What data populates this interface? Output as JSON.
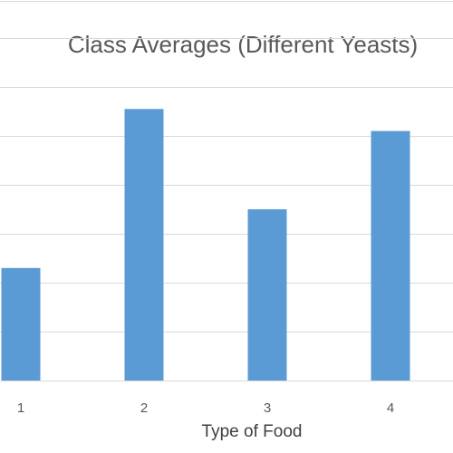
{
  "chart_data": {
    "type": "bar",
    "title": "Class Averages (Different Yeasts)",
    "xlabel": "Type of Food",
    "ylabel": "",
    "categories": [
      "1",
      "2",
      "3",
      "4"
    ],
    "values": [
      2.3,
      5.55,
      3.5,
      5.1
    ],
    "ylim": [
      0,
      7
    ],
    "grid": true,
    "legend": "none",
    "bar_color": "#5b9bd5",
    "grid_color": "#d9d9d9",
    "axis_color": "#d9d9d9"
  }
}
